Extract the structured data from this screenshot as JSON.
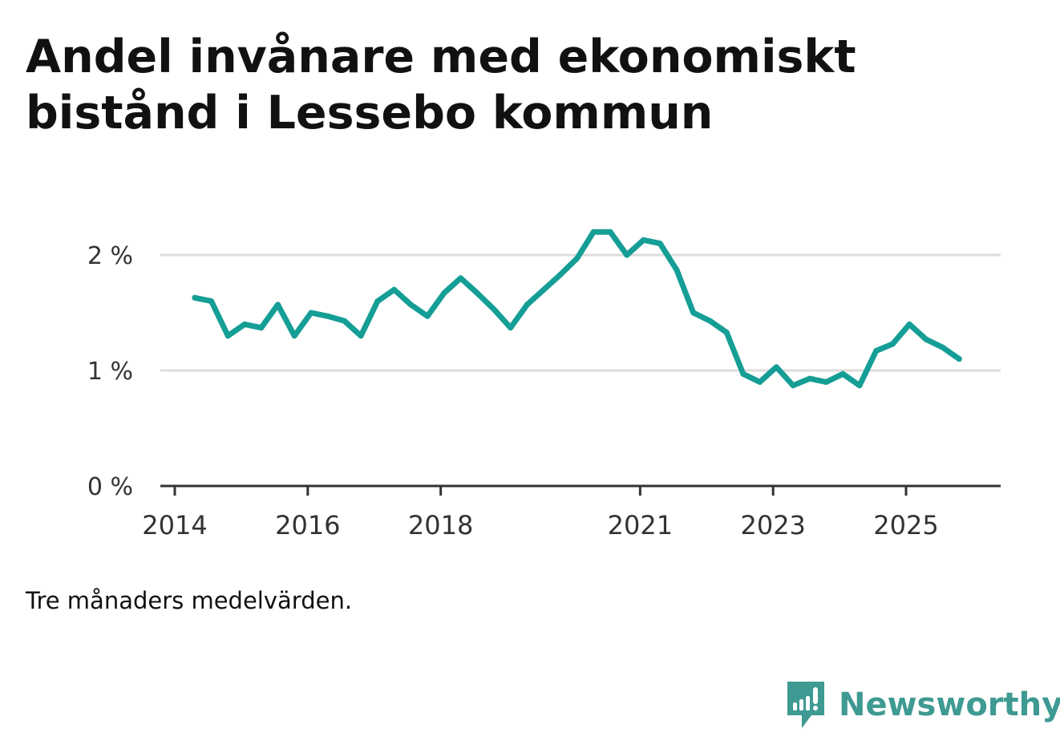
{
  "title": "Andel invånare med ekonomiskt bistånd i Lessebo kommun",
  "note": "Tre månaders medelvärden.",
  "brand": {
    "name": "Newsworthy",
    "icon": "newsworthy-logo-icon"
  },
  "colors": {
    "line": "#159e96",
    "grid": "#dddddd",
    "axis": "#333333",
    "brand": "#3e9a92"
  },
  "chart_data": {
    "type": "line",
    "title": "Andel invånare med ekonomiskt bistånd i Lessebo kommun",
    "xlabel": "",
    "ylabel": "",
    "ylim": [
      0,
      2.2
    ],
    "xlim": [
      2014,
      2026.4
    ],
    "yticks": [
      {
        "value": 0,
        "label": "0 %"
      },
      {
        "value": 1,
        "label": "1 %"
      },
      {
        "value": 2,
        "label": "2 %"
      }
    ],
    "xticks": [
      {
        "value": 2014,
        "label": "2014"
      },
      {
        "value": 2016,
        "label": "2016"
      },
      {
        "value": 2018,
        "label": "2018"
      },
      {
        "value": 2021,
        "label": "2021"
      },
      {
        "value": 2023,
        "label": "2023"
      },
      {
        "value": 2025,
        "label": "2025"
      }
    ],
    "grid": true,
    "series": [
      {
        "name": "Andel invånare med ekonomiskt bistånd",
        "x": [
          2014.3,
          2014.55,
          2014.8,
          2015.05,
          2015.3,
          2015.55,
          2015.8,
          2016.05,
          2016.3,
          2016.55,
          2016.8,
          2017.05,
          2017.3,
          2017.55,
          2017.8,
          2018.05,
          2018.3,
          2018.55,
          2018.8,
          2019.05,
          2019.3,
          2019.55,
          2019.8,
          2020.05,
          2020.3,
          2020.55,
          2020.8,
          2021.05,
          2021.3,
          2021.55,
          2021.8,
          2022.05,
          2022.3,
          2022.55,
          2022.8,
          2023.05,
          2023.3,
          2023.55,
          2023.8,
          2024.05,
          2024.3,
          2024.55,
          2024.8,
          2025.05,
          2025.3,
          2025.55,
          2025.8
        ],
        "values": [
          1.63,
          1.6,
          1.3,
          1.4,
          1.37,
          1.57,
          1.3,
          1.5,
          1.47,
          1.43,
          1.3,
          1.6,
          1.7,
          1.57,
          1.47,
          1.67,
          1.8,
          1.67,
          1.53,
          1.37,
          1.57,
          1.7,
          1.83,
          1.97,
          2.2,
          2.2,
          2.0,
          2.13,
          2.1,
          1.87,
          1.5,
          1.43,
          1.33,
          0.97,
          0.9,
          1.03,
          0.87,
          0.93,
          0.9,
          0.97,
          0.87,
          1.17,
          1.23,
          1.4,
          1.27,
          1.2,
          1.1
        ]
      }
    ]
  }
}
